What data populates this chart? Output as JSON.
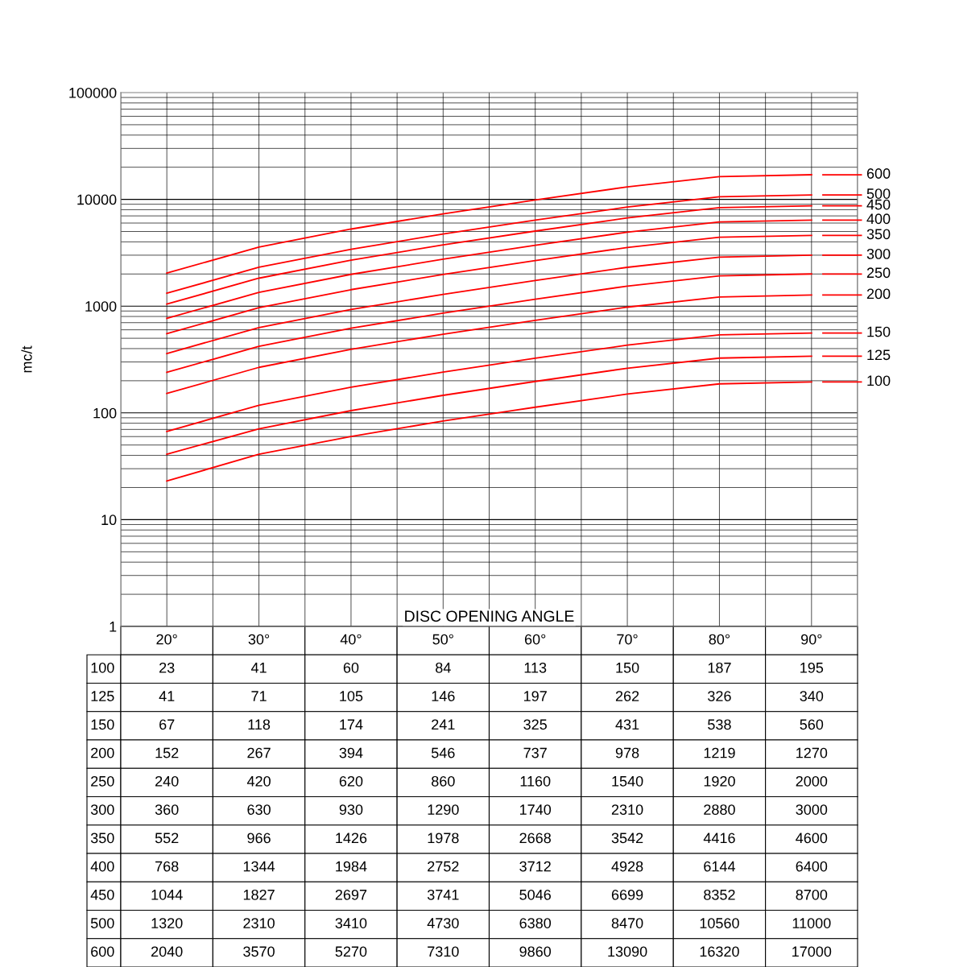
{
  "chart_data": {
    "type": "line",
    "xlabel": "DISC OPENING ANGLE",
    "ylabel": "mc/t",
    "categories": [
      "20°",
      "30°",
      "40°",
      "50°",
      "60°",
      "70°",
      "80°",
      "90°"
    ],
    "log": "y",
    "ylim": [
      1,
      100000
    ],
    "yticks": [
      1,
      10,
      100,
      1000,
      10000,
      100000
    ],
    "grid": true,
    "tick_labels": "y",
    "data_labels": true,
    "marker": "none",
    "legend": "right",
    "line_style": "solid",
    "series": [
      {
        "name": "100",
        "color": "#ff0000",
        "values": [
          23,
          41,
          60,
          84,
          113,
          150,
          187,
          195
        ]
      },
      {
        "name": "125",
        "color": "#ff0000",
        "values": [
          41,
          71,
          105,
          146,
          197,
          262,
          326,
          340
        ]
      },
      {
        "name": "150",
        "color": "#ff0000",
        "values": [
          67,
          118,
          174,
          241,
          325,
          431,
          538,
          560
        ]
      },
      {
        "name": "200",
        "color": "#ff0000",
        "values": [
          152,
          267,
          394,
          546,
          737,
          978,
          1219,
          1270
        ]
      },
      {
        "name": "250",
        "color": "#ff0000",
        "values": [
          240,
          420,
          620,
          860,
          1160,
          1540,
          1920,
          2000
        ]
      },
      {
        "name": "300",
        "color": "#ff0000",
        "values": [
          360,
          630,
          930,
          1290,
          1740,
          2310,
          2880,
          3000
        ]
      },
      {
        "name": "350",
        "color": "#ff0000",
        "values": [
          552,
          966,
          1426,
          1978,
          2668,
          3542,
          4416,
          4600
        ]
      },
      {
        "name": "400",
        "color": "#ff0000",
        "values": [
          768,
          1344,
          1984,
          2752,
          3712,
          4928,
          6144,
          6400
        ]
      },
      {
        "name": "450",
        "color": "#ff0000",
        "values": [
          1044,
          1827,
          2697,
          3741,
          5046,
          6699,
          8352,
          8700
        ]
      },
      {
        "name": "500",
        "color": "#ff0000",
        "values": [
          1320,
          2310,
          3410,
          4730,
          6380,
          8470,
          10560,
          11000
        ]
      },
      {
        "name": "600",
        "color": "#ff0000",
        "values": [
          2040,
          3570,
          5270,
          7310,
          9860,
          13090,
          16320,
          17000
        ]
      }
    ]
  }
}
